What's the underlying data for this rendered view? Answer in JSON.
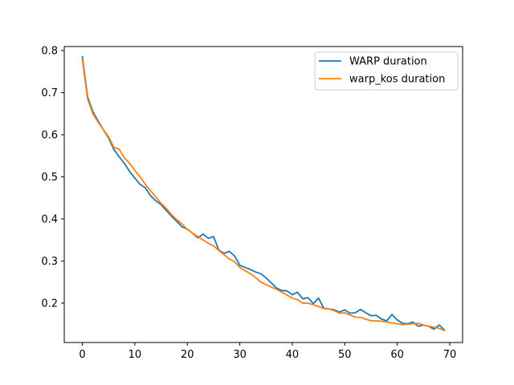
{
  "chart_data": {
    "type": "line",
    "title": "",
    "xlabel": "",
    "ylabel": "",
    "xlim": [
      -3.45,
      72.45
    ],
    "ylim": [
      0.1065,
      0.8095
    ],
    "xticks": [
      0,
      10,
      20,
      30,
      40,
      50,
      60,
      70
    ],
    "xtick_labels": [
      "0",
      "10",
      "20",
      "30",
      "40",
      "50",
      "60",
      "70"
    ],
    "yticks": [
      0.2,
      0.3,
      0.4,
      0.5,
      0.6,
      0.7,
      0.8
    ],
    "ytick_labels": [
      "0.2",
      "0.3",
      "0.4",
      "0.5",
      "0.6",
      "0.7",
      "0.8"
    ],
    "grid": false,
    "legend_position": "top-right",
    "x": [
      0,
      1,
      2,
      3,
      4,
      5,
      6,
      7,
      8,
      9,
      10,
      11,
      12,
      13,
      14,
      15,
      16,
      17,
      18,
      19,
      20,
      21,
      22,
      23,
      24,
      25,
      26,
      27,
      28,
      29,
      30,
      31,
      32,
      33,
      34,
      35,
      36,
      37,
      38,
      39,
      40,
      41,
      42,
      43,
      44,
      45,
      46,
      47,
      48,
      49,
      50,
      51,
      52,
      53,
      54,
      55,
      56,
      57,
      58,
      59,
      60,
      61,
      62,
      63,
      64,
      65,
      66,
      67,
      68,
      69
    ],
    "series": [
      {
        "name": "WARP duration",
        "color": "#1f77b4",
        "values": [
          0.785,
          0.69,
          0.655,
          0.633,
          0.612,
          0.592,
          0.565,
          0.548,
          0.532,
          0.513,
          0.497,
          0.482,
          0.474,
          0.455,
          0.443,
          0.434,
          0.42,
          0.406,
          0.394,
          0.381,
          0.376,
          0.366,
          0.355,
          0.364,
          0.354,
          0.358,
          0.326,
          0.318,
          0.323,
          0.312,
          0.29,
          0.285,
          0.28,
          0.274,
          0.27,
          0.26,
          0.248,
          0.236,
          0.23,
          0.229,
          0.22,
          0.226,
          0.21,
          0.213,
          0.199,
          0.212,
          0.188,
          0.186,
          0.184,
          0.179,
          0.184,
          0.176,
          0.177,
          0.185,
          0.177,
          0.17,
          0.171,
          0.162,
          0.158,
          0.173,
          0.16,
          0.152,
          0.151,
          0.155,
          0.145,
          0.148,
          0.145,
          0.138,
          0.148,
          0.136
        ]
      },
      {
        "name": "warp_kos duration",
        "color": "#ff7f0e",
        "values": [
          0.778,
          0.685,
          0.65,
          0.63,
          0.612,
          0.595,
          0.57,
          0.566,
          0.545,
          0.532,
          0.515,
          0.5,
          0.482,
          0.467,
          0.452,
          0.437,
          0.425,
          0.41,
          0.398,
          0.388,
          0.375,
          0.366,
          0.358,
          0.35,
          0.342,
          0.336,
          0.325,
          0.315,
          0.305,
          0.298,
          0.285,
          0.277,
          0.27,
          0.261,
          0.25,
          0.244,
          0.238,
          0.233,
          0.226,
          0.219,
          0.212,
          0.208,
          0.2,
          0.2,
          0.196,
          0.192,
          0.187,
          0.186,
          0.182,
          0.176,
          0.177,
          0.172,
          0.167,
          0.166,
          0.162,
          0.158,
          0.158,
          0.157,
          0.155,
          0.153,
          0.151,
          0.149,
          0.15,
          0.151,
          0.152,
          0.148,
          0.145,
          0.143,
          0.14,
          0.135
        ]
      }
    ]
  }
}
